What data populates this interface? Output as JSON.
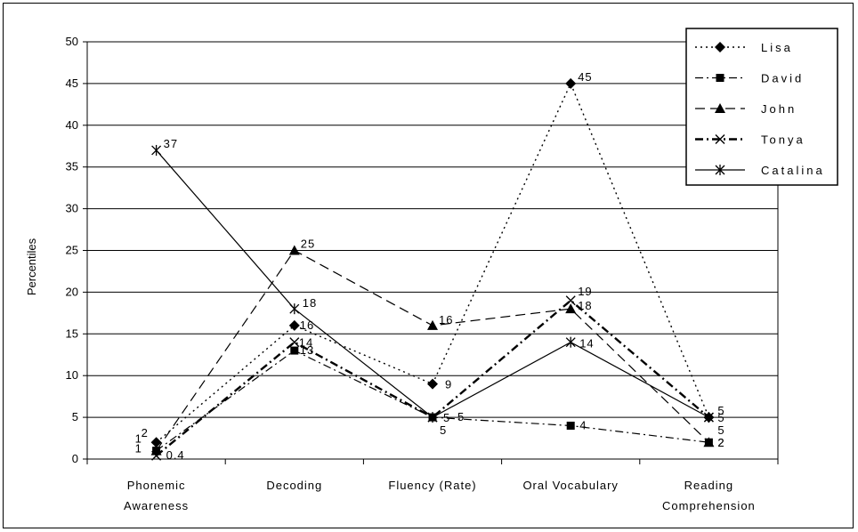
{
  "chart_data": {
    "type": "line",
    "title": "",
    "xlabel": "",
    "ylabel": "Percentiles",
    "ylim": [
      0,
      50
    ],
    "yticks": [
      "0",
      "5",
      "10",
      "15",
      "20",
      "25",
      "30",
      "35",
      "40",
      "45",
      "50"
    ],
    "grid": true,
    "legend_position": "top-right",
    "categories": [
      [
        "Phonemic",
        "Awareness"
      ],
      [
        "Decoding"
      ],
      [
        "Fluency (Rate)"
      ],
      [
        "Oral Vocabulary"
      ],
      [
        "Reading",
        "Comprehension"
      ]
    ],
    "series": [
      {
        "name": "Lisa",
        "values": [
          2,
          16,
          9,
          45,
          5
        ],
        "labels": [
          "2",
          "16",
          "9",
          "45",
          "5"
        ],
        "marker": "diamond",
        "dash": "2,4",
        "width": 1.4
      },
      {
        "name": "David",
        "values": [
          1,
          13,
          5,
          4,
          2
        ],
        "labels": [
          "1",
          "13",
          "5",
          "4",
          "2"
        ],
        "marker": "square",
        "dash": "9,4,2,4",
        "width": 1.2
      },
      {
        "name": "John",
        "values": [
          1,
          25,
          16,
          18,
          2
        ],
        "labels": [
          "1",
          "25",
          "16",
          "18",
          "2"
        ],
        "marker": "triangle",
        "dash": "11,6",
        "width": 1.2
      },
      {
        "name": "Tonya",
        "values": [
          0.4,
          14,
          5,
          19,
          5
        ],
        "labels": [
          "0.4",
          "14",
          "5",
          "19",
          "5"
        ],
        "marker": "x",
        "dash": "9,4,2,4",
        "width": 2.4
      },
      {
        "name": "Catalina",
        "values": [
          37,
          18,
          5,
          14,
          5
        ],
        "labels": [
          "37",
          "18",
          "5",
          "14",
          "5"
        ],
        "marker": "asterisk",
        "dash": "",
        "width": 1.2
      }
    ]
  }
}
